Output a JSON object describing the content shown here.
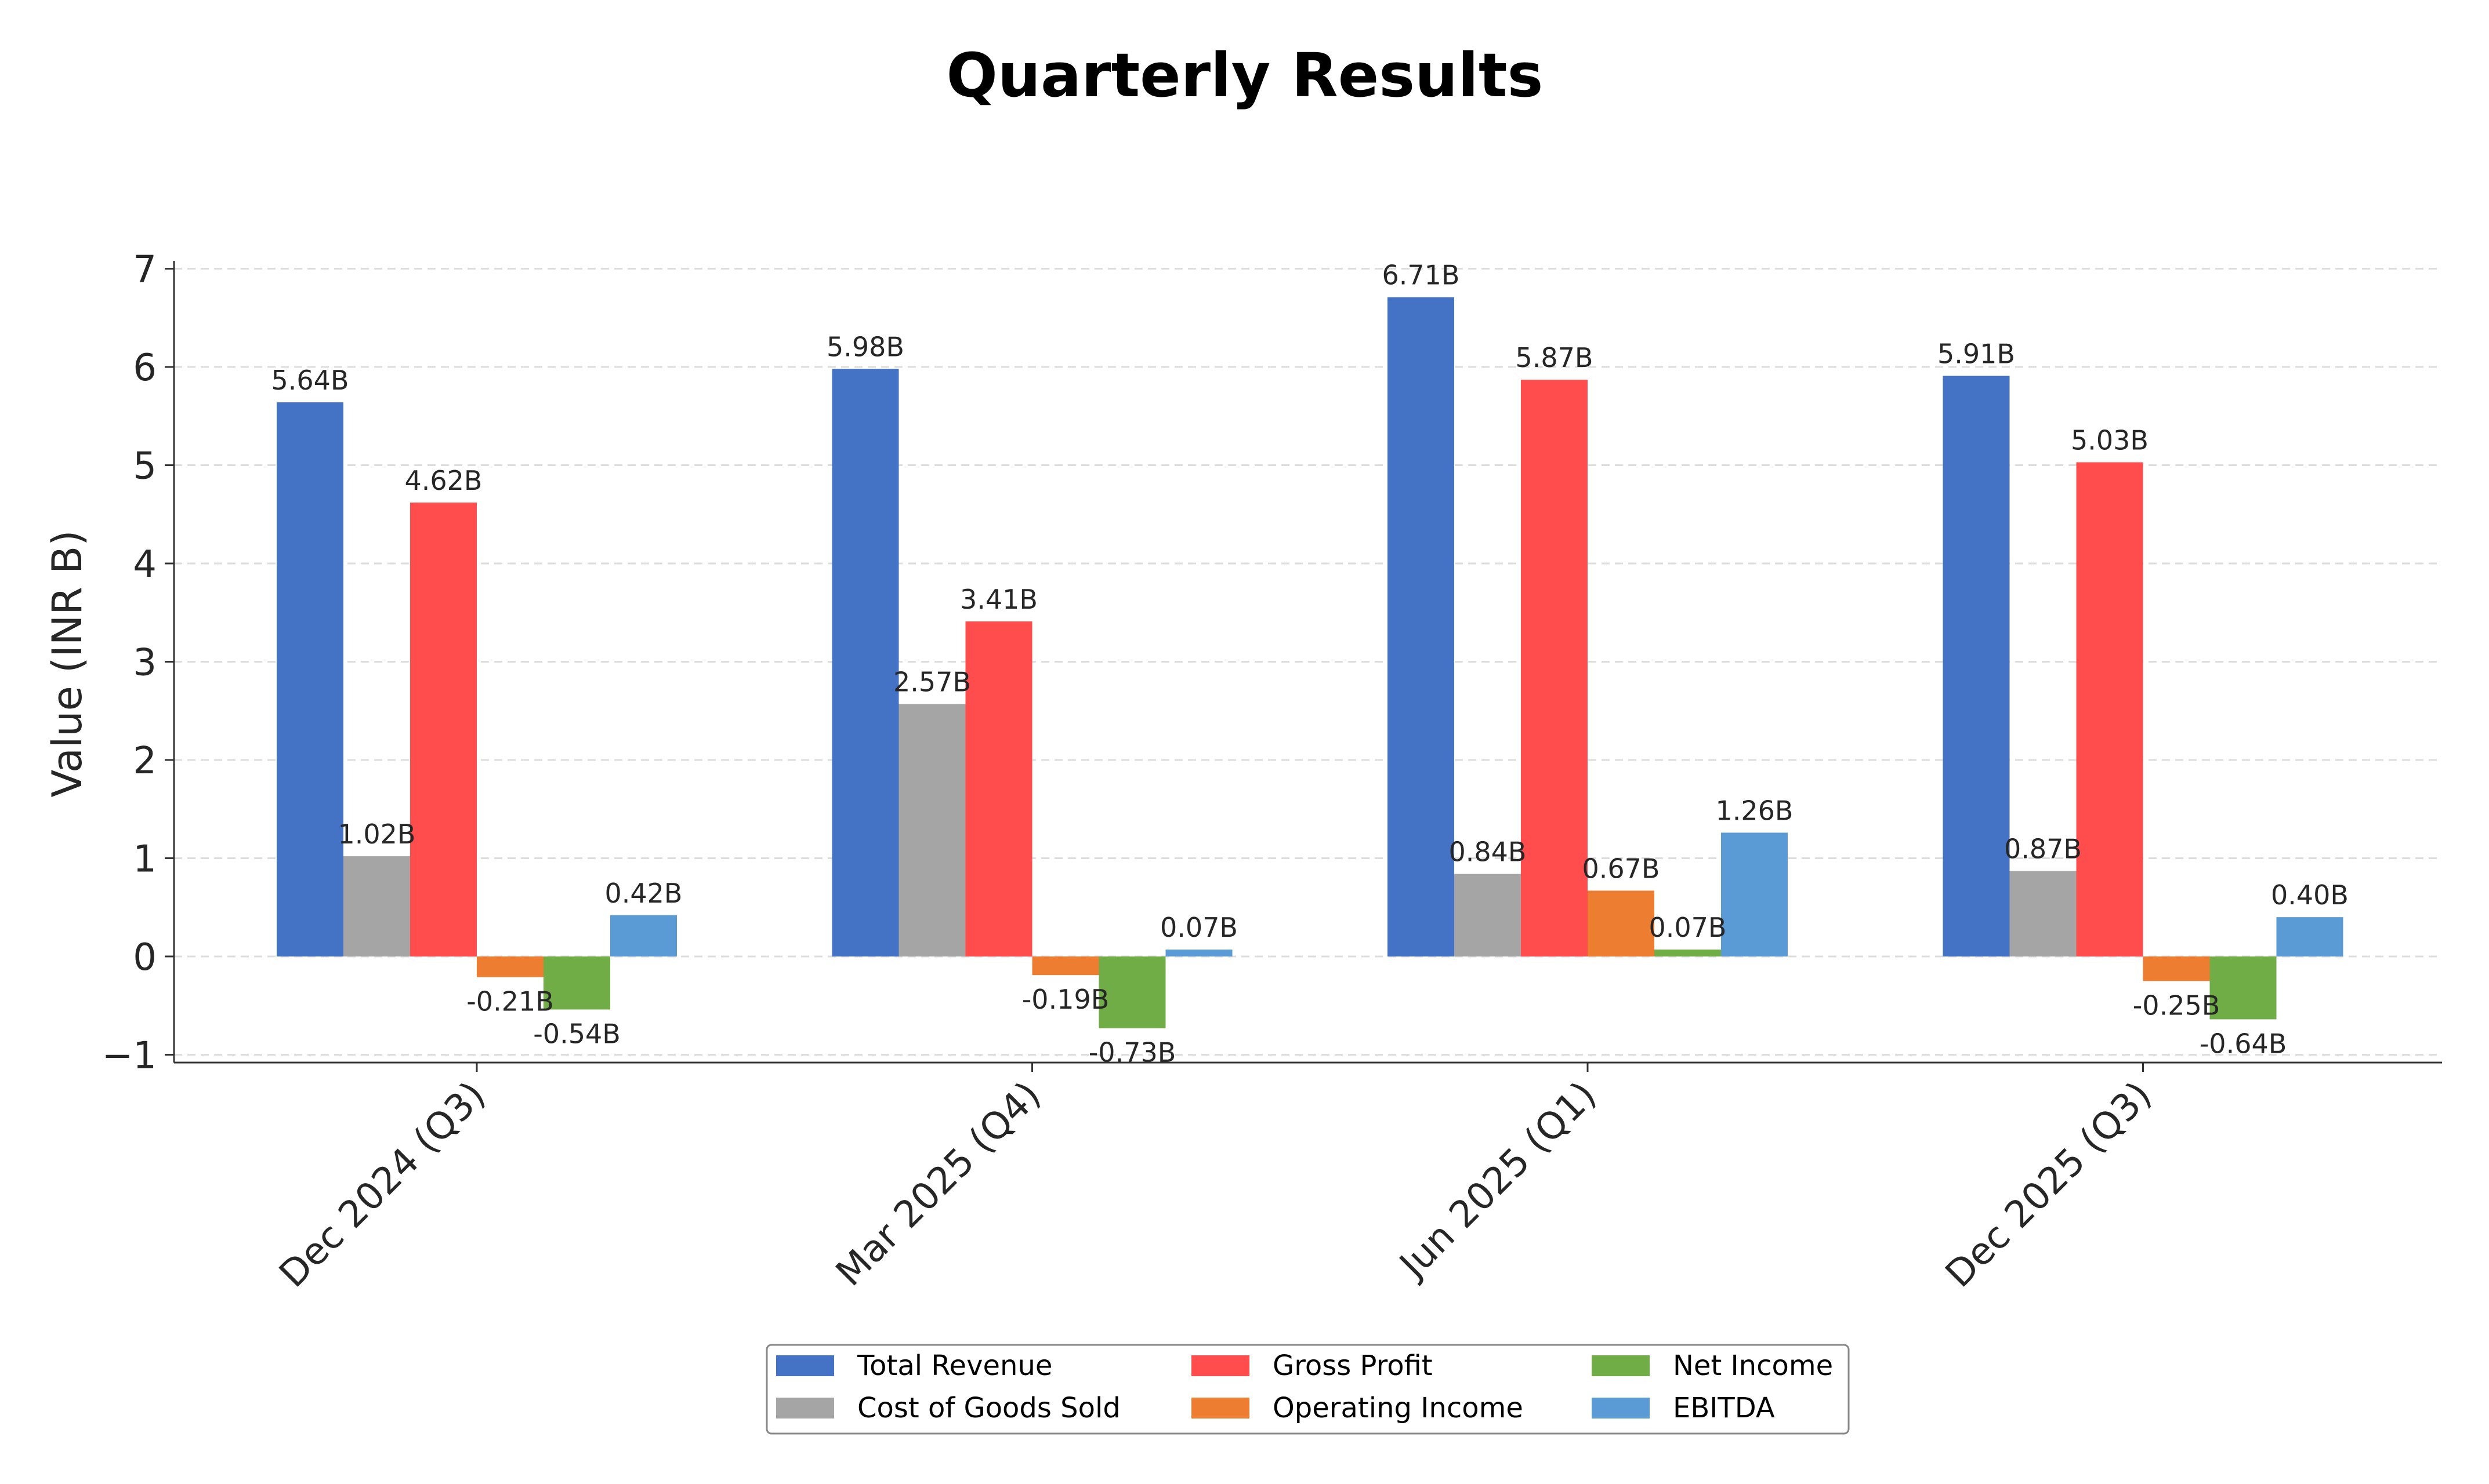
{
  "chart_data": {
    "type": "bar",
    "title": "Quarterly Results",
    "ylabel": "Value (INR B)",
    "xlabel": "",
    "ylim": [
      -1.08,
      7.08
    ],
    "yticks": [
      -1,
      0,
      1,
      2,
      3,
      4,
      5,
      6,
      7
    ],
    "ytick_labels": [
      "−1",
      "0",
      "1",
      "2",
      "3",
      "4",
      "5",
      "6",
      "7"
    ],
    "grid": "horizontal dashed",
    "legend_position": "bottom-center",
    "categories": [
      "Dec 2024 (Q3)",
      "Mar 2025 (Q4)",
      "Jun 2025 (Q1)",
      "Dec 2025 (Q3)"
    ],
    "series": [
      {
        "name": "Total Revenue",
        "color": "#4472C4",
        "values": [
          5.64,
          5.98,
          6.71,
          5.91
        ],
        "labels": [
          "5.64B",
          "5.98B",
          "6.71B",
          "5.91B"
        ]
      },
      {
        "name": "Cost of Goods Sold",
        "color": "#A5A5A5",
        "values": [
          1.02,
          2.57,
          0.84,
          0.87
        ],
        "labels": [
          "1.02B",
          "2.57B",
          "0.84B",
          "0.87B"
        ]
      },
      {
        "name": "Gross Profit",
        "color": "#FF4C4C",
        "values": [
          4.62,
          3.41,
          5.87,
          5.03
        ],
        "labels": [
          "4.62B",
          "3.41B",
          "5.87B",
          "5.03B"
        ]
      },
      {
        "name": "Operating Income",
        "color": "#ED7D31",
        "values": [
          -0.21,
          -0.19,
          0.67,
          -0.25
        ],
        "labels": [
          "-0.21B",
          "-0.19B",
          "0.67B",
          "-0.25B"
        ]
      },
      {
        "name": "Net Income",
        "color": "#70AD47",
        "values": [
          -0.54,
          -0.73,
          0.07,
          -0.64
        ],
        "labels": [
          "-0.54B",
          "-0.73B",
          "0.07B",
          "-0.64B"
        ]
      },
      {
        "name": "EBITDA",
        "color": "#5B9BD5",
        "values": [
          0.42,
          0.07,
          1.26,
          0.4
        ],
        "labels": [
          "0.42B",
          "0.07B",
          "1.26B",
          "0.40B"
        ]
      }
    ]
  }
}
